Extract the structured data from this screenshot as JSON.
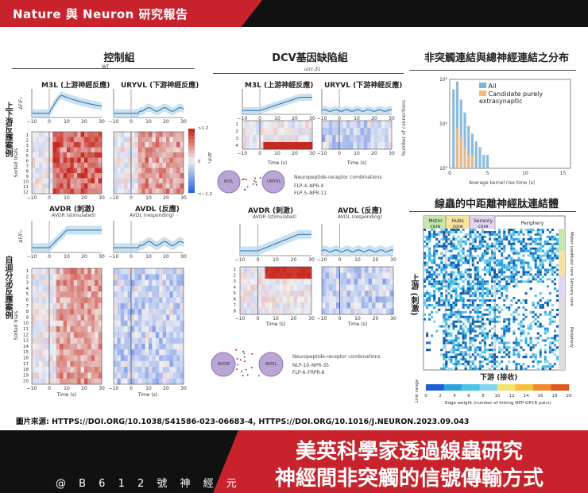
{
  "header": {
    "title": "Nature 與 Neuron 研究報告"
  },
  "sections": {
    "control": "控制組",
    "dcv": "DCV基因缺陷組",
    "distribution": "非突觸連結與總神經連結之分布",
    "npp": "線蟲的中距離神經肽連結體"
  },
  "control": {
    "genotype": "WT",
    "row_top": "上下游反應案例",
    "row_bottom": "自迴分泌反應案例",
    "m3l": "M3L (上游神經反應)",
    "uryvl": "URYVL (下游神經反應)",
    "avdr": "AVDR (刺激)",
    "avdl": "AVDL (反應)",
    "avdr_sub": "AVDR (stimulated)",
    "avdl_sub": "AVDL (responding)",
    "colorbar_top": ">1.2",
    "colorbar_mid": "0",
    "colorbar_bot": "<−1.2",
    "colorbar_label": "ΔF/F₀"
  },
  "dcv": {
    "genotype": "unc-31",
    "m3l": "M3L (上游神經反應)",
    "uryvl": "URYVL (下游神經反應)",
    "avdr": "AVDR (刺激)",
    "avdl": "AVDL (反應)",
    "avdr_sub": "AVDR (stimulated)",
    "avdl_sub": "AVDL (responding)",
    "combos_title_1": "Neuropeptide-receptor combinations",
    "combo_1a": "FLP-4–NPR-4",
    "combo_1b": "FLP-5–NPR-11",
    "combos_title_2": "Neuropeptide-receptor combinations",
    "combo_2a": "NLP-10–NPR-35",
    "combo_2b": "FLP-6–FRPR-8",
    "cell_m3l": "M3L",
    "cell_uryvl": "URYVL",
    "cell_avdr": "AVDR",
    "cell_avdl": "AVDL"
  },
  "axes": {
    "y_label": "ΔF/F₀",
    "trials_label": "Sorted trials",
    "time_label": "Time (s)",
    "x_ticks": [
      "−10",
      "0",
      "10",
      "20",
      "30"
    ],
    "y_ticks_top": [
      "0",
      "1"
    ],
    "y_ticks_avd": [
      "0",
      "0.5"
    ]
  },
  "trials": {
    "top": [
      "1",
      "2",
      "3",
      "4",
      "5",
      "6",
      "7",
      "8",
      "9",
      "10",
      "11",
      "12"
    ],
    "bottom": [
      "1",
      "2",
      "3",
      "4",
      "5",
      "6",
      "7",
      "8",
      "9",
      "10",
      "11",
      "12",
      "13",
      "14",
      "15",
      "16",
      "17",
      "18",
      "19",
      "20"
    ],
    "dcv_top": [
      "1",
      "2",
      "3",
      "4"
    ],
    "dcv_bottom": [
      "1",
      "2",
      "3",
      "4",
      "5",
      "6",
      "7",
      "8"
    ]
  },
  "histogram": {
    "ylabel": "Number of connections",
    "xlabel": "Average kernel rise time (s)",
    "y_ticks": [
      "10⁰",
      "10¹",
      "10²"
    ],
    "x_ticks": [
      "0",
      "5",
      "10",
      "15"
    ],
    "legend_all": "All",
    "legend_extra": "Candidate purely extrasynaptic",
    "color_all": "#7fb4d9",
    "color_extra": "#f4b87a"
  },
  "chart_data": {
    "type": "bar",
    "xlabel": "Average kernel rise time (s)",
    "ylabel": "Number of connections",
    "ylim": [
      1,
      100
    ],
    "xlim": [
      0,
      16
    ],
    "yscale": "log",
    "series": [
      {
        "name": "All",
        "x": [
          0.5,
          1.0,
          1.5,
          2.0,
          2.5,
          3.0,
          3.5,
          4.0,
          4.5,
          5.0,
          5.5,
          6.0,
          7.0,
          8.0,
          10.5,
          15.5
        ],
        "values": [
          60,
          90,
          35,
          18,
          9,
          6,
          4,
          3,
          2,
          2,
          1,
          1,
          1,
          1,
          1,
          1
        ]
      },
      {
        "name": "Candidate purely extrasynaptic",
        "x": [
          1.0,
          1.5,
          2.0,
          2.5,
          3.0,
          3.5,
          4.0,
          5.0,
          6.0,
          8.0
        ],
        "values": [
          8,
          5,
          3,
          2,
          2,
          1,
          1,
          1,
          1,
          1
        ]
      }
    ]
  },
  "npp": {
    "groups": [
      "Motor core",
      "Hubs core",
      "Sensory core",
      "Periphery"
    ],
    "right_labels": [
      "Motor core",
      "Hubs core",
      "Sensory core",
      "Periphery"
    ],
    "ylabel": "上游 (刺激)",
    "xlabel": "下游 (接收)",
    "scale_label": "Edge weight (number of linking NPP-GPCR pairs)",
    "scale_side": "Link range",
    "scale_ticks": [
      "0",
      "2",
      "4",
      "6",
      "8",
      "10",
      "12",
      "14",
      "16",
      "18",
      "20"
    ]
  },
  "source": "圖片來源: HTTPS://DOI.ORG/10.1038/S41586-023-06683-4, HTTPS://DOI.ORG/10.1016/J.NEURON.2023.09.043",
  "footer": {
    "handle": "@ B 6 1 2 號 神 經 元",
    "headline_1": "美英科學家透過線蟲研究",
    "headline_2": "神經間非突觸的信號傳輸方式"
  }
}
